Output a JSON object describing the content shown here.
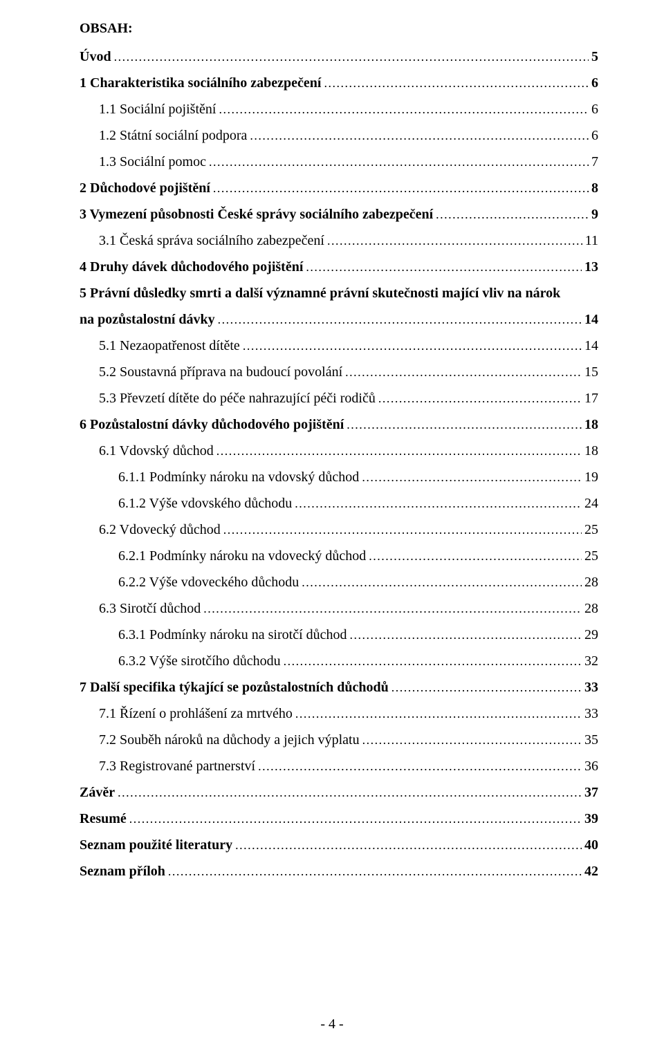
{
  "heading": "OBSAH:",
  "footer": "- 4 -",
  "entries": [
    {
      "label": "Úvod",
      "page": "5",
      "bold": true,
      "indent": 0
    },
    {
      "label": "1 Charakteristika sociálního zabezpečení",
      "page": "6",
      "bold": true,
      "indent": 0
    },
    {
      "label": "1.1 Sociální pojištění",
      "page": "6",
      "bold": false,
      "indent": 1
    },
    {
      "label": "1.2 Státní sociální podpora",
      "page": "6",
      "bold": false,
      "indent": 1
    },
    {
      "label": "1.3 Sociální pomoc",
      "page": "7",
      "bold": false,
      "indent": 1
    },
    {
      "label": "2 Důchodové pojištění",
      "page": "8",
      "bold": true,
      "indent": 0
    },
    {
      "label": "3 Vymezení působnosti České správy sociálního zabezpečení",
      "page": "9",
      "bold": true,
      "indent": 0
    },
    {
      "label": "3.1 Česká správa sociálního zabezpečení",
      "page": "11",
      "bold": false,
      "indent": 1
    },
    {
      "label": "4 Druhy dávek důchodového pojištění",
      "page": "13",
      "bold": true,
      "indent": 0
    },
    {
      "type": "wrap",
      "first": "5 Právní důsledky smrti a další významné právní skutečnosti mající vliv na nárok",
      "secondLabel": "na pozůstalostní dávky",
      "page": "14",
      "bold": true,
      "indent": 0
    },
    {
      "label": "5.1 Nezaopatřenost dítěte",
      "page": "14",
      "bold": false,
      "indent": 1
    },
    {
      "label": "5.2 Soustavná příprava na budoucí povolání",
      "page": "15",
      "bold": false,
      "indent": 1
    },
    {
      "label": "5.3 Převzetí dítěte do péče nahrazující péči rodičů",
      "page": "17",
      "bold": false,
      "indent": 1
    },
    {
      "label": "6 Pozůstalostní dávky důchodového pojištění",
      "page": "18",
      "bold": true,
      "indent": 0
    },
    {
      "label": "6.1 Vdovský důchod",
      "page": "18",
      "bold": false,
      "indent": 1
    },
    {
      "label": "6.1.1 Podmínky nároku na vdovský důchod",
      "page": "19",
      "bold": false,
      "indent": 2
    },
    {
      "label": "6.1.2 Výše vdovského důchodu",
      "page": "24",
      "bold": false,
      "indent": 2
    },
    {
      "label": "6.2 Vdovecký důchod",
      "page": "25",
      "bold": false,
      "indent": 1
    },
    {
      "label": "6.2.1 Podmínky nároku na vdovecký důchod",
      "page": "25",
      "bold": false,
      "indent": 2
    },
    {
      "label": "6.2.2 Výše vdoveckého důchodu",
      "page": "28",
      "bold": false,
      "indent": 2
    },
    {
      "label": "6.3 Sirotčí důchod",
      "page": "28",
      "bold": false,
      "indent": 1
    },
    {
      "label": "6.3.1 Podmínky nároku na sirotčí důchod",
      "page": "29",
      "bold": false,
      "indent": 2
    },
    {
      "label": "6.3.2 Výše sirotčího důchodu",
      "page": "32",
      "bold": false,
      "indent": 2
    },
    {
      "label": "7 Další specifika týkající se pozůstalostních důchodů",
      "page": "33",
      "bold": true,
      "indent": 0
    },
    {
      "label": "7.1 Řízení o prohlášení za mrtvého",
      "page": "33",
      "bold": false,
      "indent": 1
    },
    {
      "label": "7.2 Souběh nároků na důchody a jejich výplatu",
      "page": "35",
      "bold": false,
      "indent": 1
    },
    {
      "label": "7.3 Registrované partnerství",
      "page": "36",
      "bold": false,
      "indent": 1
    },
    {
      "label": "Závěr",
      "page": "37",
      "bold": true,
      "indent": 0
    },
    {
      "label": "Resumé",
      "page": "39",
      "bold": true,
      "indent": 0
    },
    {
      "label": "Seznam použité literatury",
      "page": "40",
      "bold": true,
      "indent": 0
    },
    {
      "label": "Seznam příloh",
      "page": "42",
      "bold": true,
      "indent": 0
    }
  ]
}
